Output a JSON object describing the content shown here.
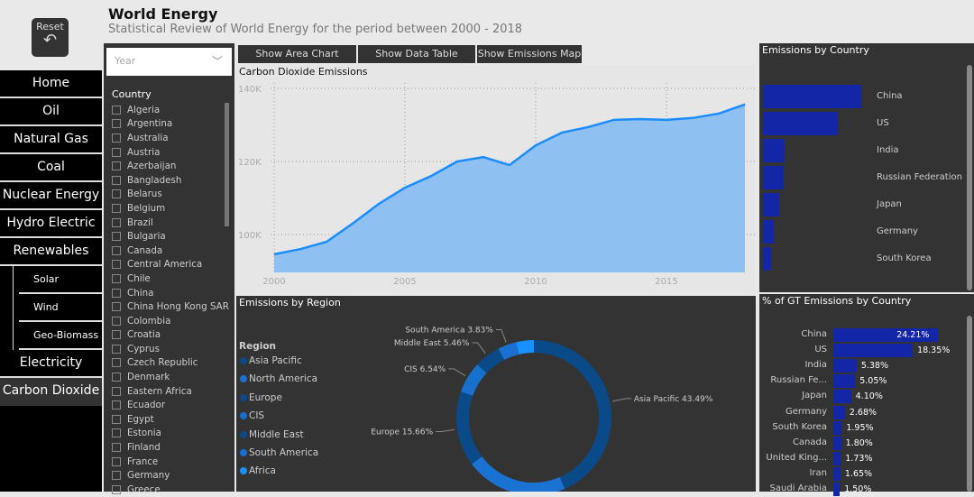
{
  "header": {
    "title": "World Energy",
    "subtitle": "Statistical Review of World Energy for the period between 2000 - 2018",
    "reset_label": "Reset"
  },
  "nav": {
    "items": [
      "Home",
      "Oil",
      "Natural Gas",
      "Coal",
      "Nuclear Energy",
      "Hydro Electric",
      "Renewables"
    ],
    "sub_items": [
      "Solar",
      "Wind",
      "Geo-Biomass"
    ],
    "items_after": [
      "Electricity",
      "Carbon Dioxide"
    ],
    "active": "Carbon Dioxide"
  },
  "filter": {
    "year_placeholder": "Year",
    "country_header": "Country",
    "countries": [
      "Algeria",
      "Argentina",
      "Australia",
      "Austria",
      "Azerbaijan",
      "Bangladesh",
      "Belarus",
      "Belgium",
      "Brazil",
      "Bulgaria",
      "Canada",
      "Central America",
      "Chile",
      "China",
      "China Hong Kong SAR",
      "Colombia",
      "Croatia",
      "Cyprus",
      "Czech Republic",
      "Denmark",
      "Eastern Africa",
      "Ecuador",
      "Egypt",
      "Estonia",
      "Finland",
      "France",
      "Germany",
      "Greece"
    ]
  },
  "tabs": [
    "Show Area Chart",
    "Show Data Table",
    "Show Emissions Map"
  ],
  "colors": {
    "area": "#8fc0f2",
    "line": "#1a8cff",
    "bar": "#1426a8",
    "panel": "#333333"
  },
  "chart_data": [
    {
      "type": "area",
      "title": "Carbon Dioxide Emissions",
      "x": [
        2000,
        2001,
        2002,
        2003,
        2004,
        2005,
        2006,
        2007,
        2008,
        2009,
        2010,
        2011,
        2012,
        2013,
        2014,
        2015,
        2016,
        2017,
        2018
      ],
      "values": [
        94600,
        96000,
        98000,
        103000,
        108400,
        112800,
        116000,
        120000,
        121200,
        119000,
        124400,
        127900,
        129400,
        131400,
        131600,
        131400,
        131900,
        133100,
        135600
      ],
      "ylim": [
        89600,
        141500
      ],
      "xlim": [
        1999.8,
        2018.4
      ],
      "yticks": [
        "100K",
        "120K",
        "140K"
      ],
      "ytick_values": [
        100000,
        120000,
        140000
      ],
      "xticks": [
        "2000",
        "2005",
        "2010",
        "2015"
      ],
      "grid": true
    },
    {
      "type": "pie",
      "title": "Emissions by Region",
      "legend_title": "Region",
      "legend_position": "left",
      "categories": [
        "Asia Pacific",
        "North America",
        "Europe",
        "CIS",
        "Middle East",
        "South America",
        "Africa"
      ],
      "values": [
        43.49,
        21.3,
        15.66,
        6.54,
        5.46,
        3.83,
        3.72
      ],
      "labels": [
        "Asia Pacific 43.49%",
        "",
        "Europe 15.66%",
        "CIS 6.54%",
        "Middle East 5.46%",
        "South America 3.83%",
        ""
      ],
      "colors": [
        "#0b4a88",
        "#1a72d2",
        "#0b4a88",
        "#1670cc",
        "#0b4a88",
        "#1a70d0",
        "#1890ff"
      ]
    },
    {
      "type": "bar",
      "title": "Emissions by Country",
      "categories": [
        "China",
        "US",
        "India",
        "Russian Federation",
        "Japan",
        "Germany",
        "South Korea"
      ],
      "values": [
        24.21,
        18.35,
        5.38,
        5.05,
        4.1,
        2.68,
        1.95
      ]
    },
    {
      "type": "bar",
      "title": "% of GT Emissions by Country",
      "categories": [
        "China",
        "US",
        "India",
        "Russian Fe...",
        "Japan",
        "Germany",
        "South Korea",
        "Canada",
        "United King...",
        "Iran",
        "Saudi Arabia"
      ],
      "values": [
        24.21,
        18.35,
        5.38,
        5.05,
        4.1,
        2.68,
        1.95,
        1.8,
        1.73,
        1.65,
        1.5
      ],
      "labels": [
        "24.21%",
        "18.35%",
        "5.38%",
        "5.05%",
        "4.10%",
        "2.68%",
        "1.95%",
        "1.80%",
        "1.73%",
        "1.65%",
        "1.50%"
      ]
    }
  ]
}
